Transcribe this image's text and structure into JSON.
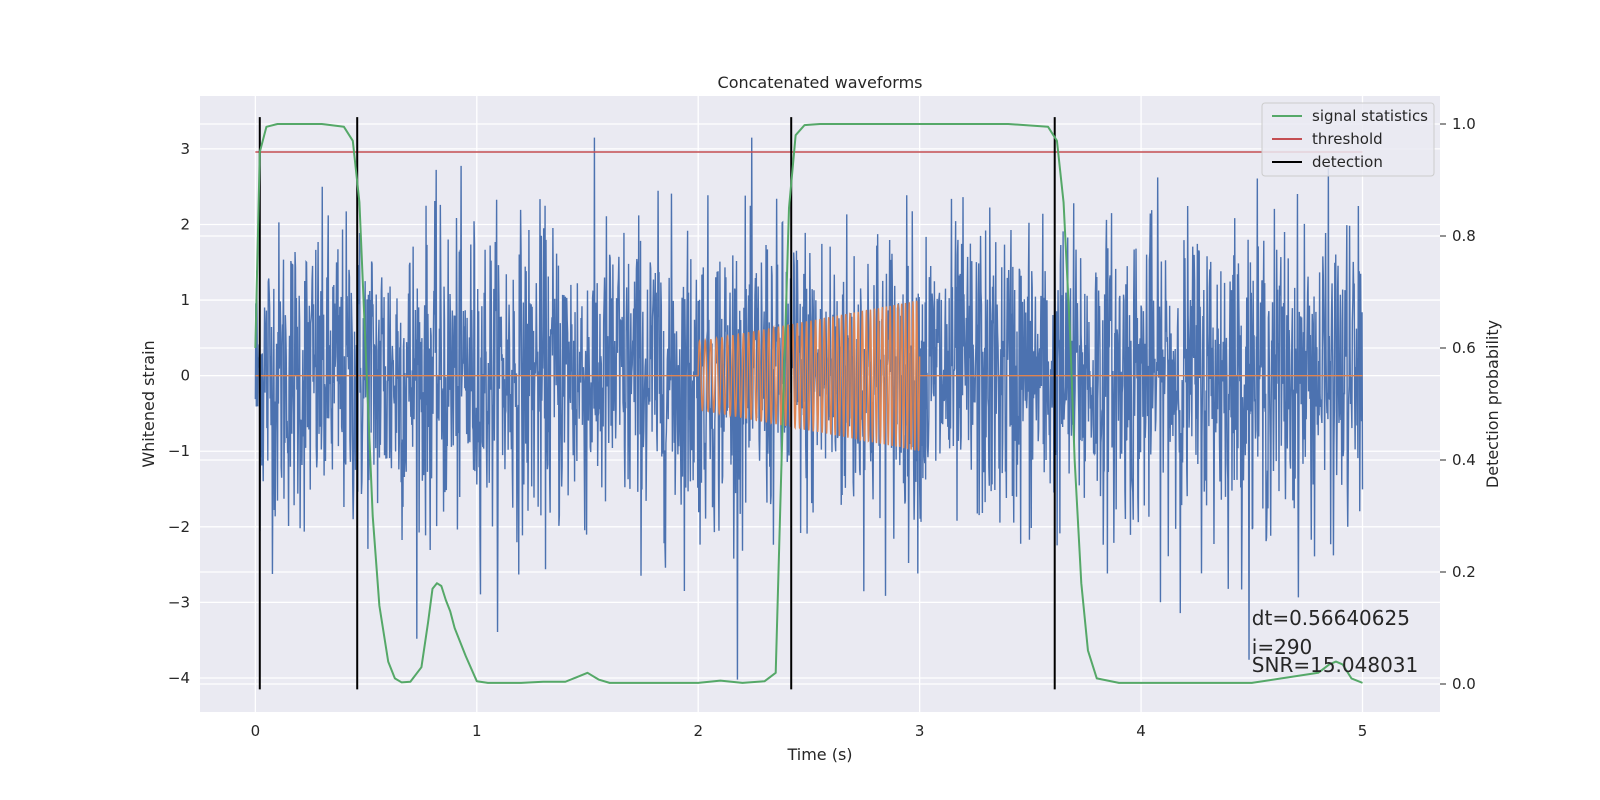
{
  "chart_data": {
    "type": "line",
    "title": "Concatenated waveforms",
    "xlabel": "Time (s)",
    "ylabel": "Whitened strain",
    "y2label": "Detection probability",
    "xlim": [
      -0.25,
      5.35
    ],
    "ylim": [
      -4.45,
      3.7
    ],
    "y2lim": [
      -0.05,
      1.05
    ],
    "x_ticks": [
      0,
      1,
      2,
      3,
      4,
      5
    ],
    "y_ticks": [
      -4,
      -3,
      -2,
      -1,
      0,
      1,
      2,
      3
    ],
    "y2_ticks": [
      0.0,
      0.2,
      0.4,
      0.6,
      0.8,
      1.0
    ],
    "y2_tick_labels": [
      "0.0",
      "0.2",
      "0.4",
      "0.6",
      "0.8",
      "1.0"
    ],
    "grid": true,
    "legend_position": "top-right",
    "colors": {
      "noise": "#4c72b0",
      "injection": "#dd8452",
      "signal_statistics": "#55a868",
      "threshold": "#c44e52",
      "detection": "#000000",
      "background": "#eaeaf2",
      "grid": "#ffffff"
    },
    "noise_series": {
      "x_range": [
        0,
        5
      ],
      "typical_amplitude": 1.0,
      "min": -4.3,
      "max": 3.15
    },
    "injection_series": {
      "x_range": [
        2.0,
        3.0
      ],
      "amplitude_start": 0.45,
      "amplitude_end": 1.0
    },
    "series": [
      {
        "name": "signal statistics",
        "axis": "right",
        "x": [
          0.0,
          0.02,
          0.05,
          0.1,
          0.2,
          0.3,
          0.4,
          0.44,
          0.47,
          0.5,
          0.53,
          0.56,
          0.6,
          0.63,
          0.66,
          0.7,
          0.75,
          0.78,
          0.8,
          0.82,
          0.84,
          0.86,
          0.88,
          0.9,
          0.95,
          1.0,
          1.05,
          1.1,
          1.2,
          1.3,
          1.4,
          1.45,
          1.5,
          1.55,
          1.6,
          1.8,
          2.0,
          2.05,
          2.1,
          2.15,
          2.2,
          2.3,
          2.35,
          2.38,
          2.41,
          2.44,
          2.48,
          2.55,
          3.0,
          3.4,
          3.58,
          3.62,
          3.65,
          3.68,
          3.7,
          3.73,
          3.76,
          3.8,
          3.9,
          4.0,
          4.5,
          4.8,
          4.85,
          4.88,
          4.91,
          4.95,
          5.0
        ],
        "y": [
          0.6,
          0.95,
          0.995,
          1.0,
          1.0,
          1.0,
          0.995,
          0.97,
          0.86,
          0.58,
          0.3,
          0.14,
          0.04,
          0.01,
          0.003,
          0.004,
          0.03,
          0.11,
          0.17,
          0.18,
          0.175,
          0.15,
          0.13,
          0.1,
          0.05,
          0.005,
          0.002,
          0.002,
          0.002,
          0.004,
          0.004,
          0.012,
          0.02,
          0.008,
          0.002,
          0.002,
          0.002,
          0.004,
          0.006,
          0.004,
          0.002,
          0.005,
          0.02,
          0.45,
          0.85,
          0.98,
          0.998,
          1.0,
          1.0,
          1.0,
          0.995,
          0.97,
          0.86,
          0.62,
          0.4,
          0.18,
          0.06,
          0.01,
          0.002,
          0.002,
          0.002,
          0.02,
          0.035,
          0.04,
          0.035,
          0.01,
          0.002
        ]
      },
      {
        "name": "threshold",
        "axis": "right",
        "x": [
          0,
          5
        ],
        "y": [
          0.95,
          0.95
        ]
      },
      {
        "name": "detection",
        "axis": "left",
        "lines_x": [
          0.02,
          0.46,
          2.42,
          3.61
        ],
        "y_range": [
          -4.15,
          3.42
        ]
      }
    ],
    "annotations": [
      {
        "text": "dt=0.56640625",
        "x": 4.5,
        "y": -3.3
      },
      {
        "text": " i=290",
        "x": 4.5,
        "y": -3.68
      },
      {
        "text": "SNR=15.048031",
        "x": 4.5,
        "y": -3.92
      }
    ]
  }
}
